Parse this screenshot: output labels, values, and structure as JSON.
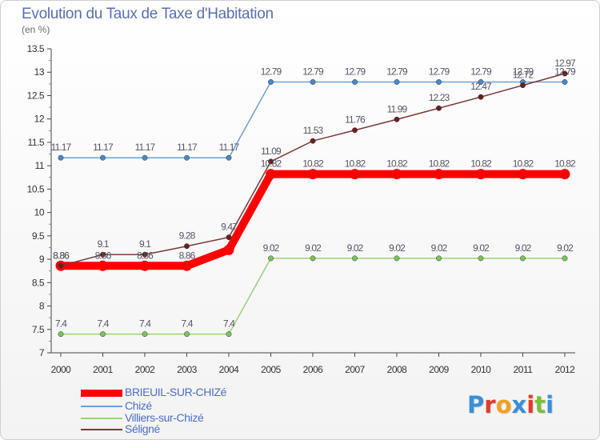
{
  "header": {
    "title": "Evolution du Taux de Taxe d'Habitation",
    "subtitle": "(en %)"
  },
  "logo": {
    "letters": [
      "P",
      "r",
      "o",
      "x",
      "i",
      "t",
      "i"
    ],
    "colors": [
      "#3a8fd6",
      "#e23a2e",
      "#f0a020",
      "#3a8fd6",
      "#e23a2e",
      "#7bbf3a",
      "#3a8fd6"
    ]
  },
  "chart_data": {
    "type": "line",
    "x": [
      "2000",
      "2001",
      "2002",
      "2003",
      "2004",
      "2005",
      "2006",
      "2007",
      "2008",
      "2009",
      "2010",
      "2011",
      "2012"
    ],
    "ylim": [
      7,
      13.5
    ],
    "yticks": [
      "7",
      "7.5",
      "8",
      "8.5",
      "9",
      "9.5",
      "10",
      "10.5",
      "11",
      "11.5",
      "12",
      "12.5",
      "13",
      "13.5"
    ],
    "grid": false,
    "legend_position": "bottom-left",
    "series": [
      {
        "name": "BRIEUIL-SUR-CHIZé",
        "color": "#ff0000",
        "marker": "#ff0000",
        "values": [
          8.86,
          8.86,
          8.86,
          8.86,
          9.2,
          10.82,
          10.82,
          10.82,
          10.82,
          10.82,
          10.82,
          10.82,
          10.82
        ],
        "labels": [
          "8.86",
          "8.86",
          "8.86",
          "8.86",
          "",
          "10.82",
          "10.82",
          "10.82",
          "10.82",
          "10.82",
          "10.82",
          "10.82",
          "10.82"
        ]
      },
      {
        "name": "Chizé",
        "color": "#6fa0d0",
        "marker": "#4a88c6",
        "values": [
          11.17,
          11.17,
          11.17,
          11.17,
          11.17,
          12.79,
          12.79,
          12.79,
          12.79,
          12.79,
          12.79,
          12.79,
          12.79
        ],
        "labels": [
          "11.17",
          "11.17",
          "11.17",
          "11.17",
          "11.17",
          "12.79",
          "12.79",
          "12.79",
          "12.79",
          "12.79",
          "12.79",
          "12.79",
          "12.79"
        ]
      },
      {
        "name": "Villiers-sur-Chizé",
        "color": "#9ad07a",
        "marker": "#7cc45a",
        "values": [
          7.4,
          7.4,
          7.4,
          7.4,
          7.4,
          9.02,
          9.02,
          9.02,
          9.02,
          9.02,
          9.02,
          9.02,
          9.02
        ],
        "labels": [
          "7.4",
          "7.4",
          "7.4",
          "7.4",
          "7.4",
          "9.02",
          "9.02",
          "9.02",
          "9.02",
          "9.02",
          "9.02",
          "9.02",
          "9.02"
        ]
      },
      {
        "name": "Séligné",
        "color": "#7a3a3a",
        "marker": "#6a1e1e",
        "values": [
          8.86,
          9.1,
          9.1,
          9.28,
          9.47,
          11.09,
          11.53,
          11.76,
          11.99,
          12.23,
          12.47,
          12.72,
          12.97
        ],
        "labels": [
          "8.86",
          "9.1",
          "9.1",
          "9.28",
          "9.47",
          "11.09",
          "11.53",
          "11.76",
          "11.99",
          "12.23",
          "12.47",
          "12.72",
          "12.97"
        ]
      }
    ]
  }
}
